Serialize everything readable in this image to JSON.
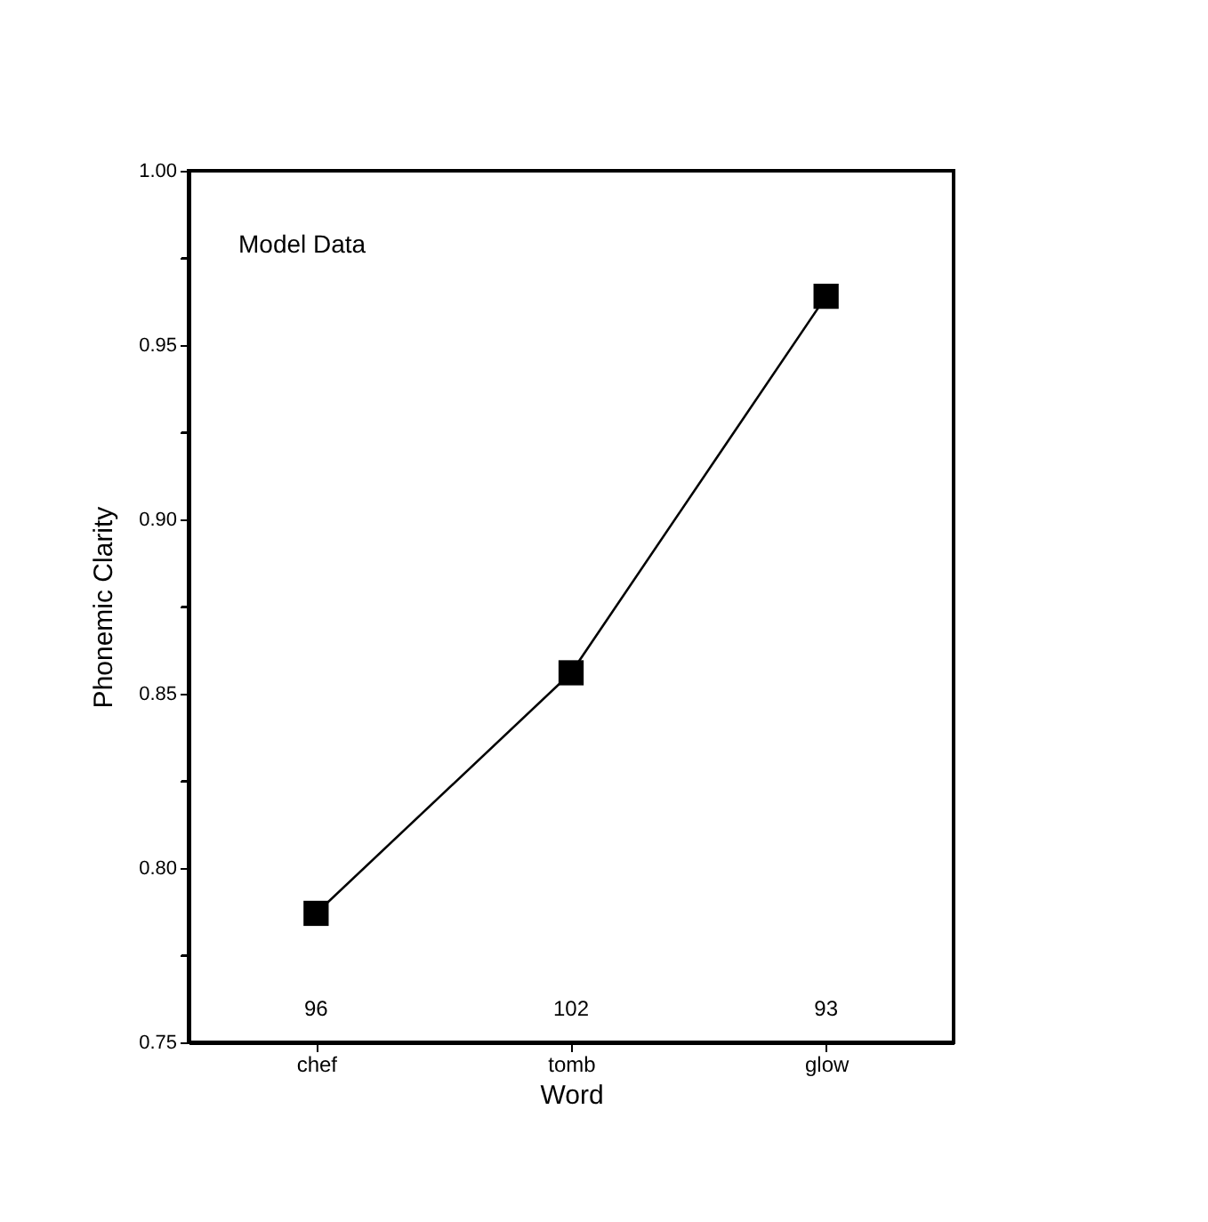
{
  "chart_data": {
    "type": "line",
    "xlabel": "Word",
    "ylabel": "Phonemic Clarity",
    "categories": [
      "chef",
      "tomb",
      "glow"
    ],
    "series": [
      {
        "color": "#000000",
        "values": [
          0.787,
          0.856,
          0.964
        ]
      }
    ],
    "ylim": [
      0.75,
      1.0
    ],
    "yticks": [
      {
        "value": 0.75,
        "label": "0.75"
      },
      {
        "value": 0.775,
        "label": null
      },
      {
        "value": 0.8,
        "label": "0.80"
      },
      {
        "value": 0.825,
        "label": null
      },
      {
        "value": 0.85,
        "label": "0.85"
      },
      {
        "value": 0.875,
        "label": null
      },
      {
        "value": 0.9,
        "label": "0.90"
      },
      {
        "value": 0.925,
        "label": null
      },
      {
        "value": 0.95,
        "label": "0.95"
      },
      {
        "value": 0.975,
        "label": null
      },
      {
        "value": 1.0,
        "label": "1.00"
      }
    ],
    "annotations": [
      "Model Data",
      "96",
      "102",
      "93"
    ],
    "marker": "square",
    "line_style": "solid",
    "grid": false
  }
}
